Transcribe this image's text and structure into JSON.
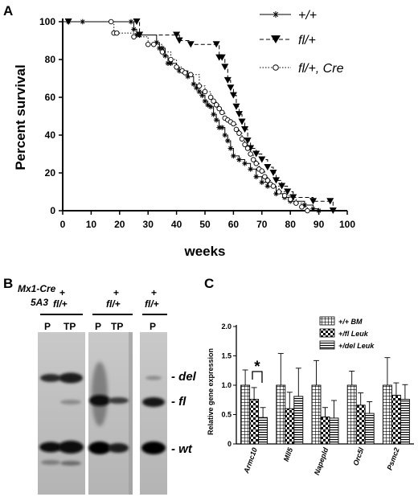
{
  "figure": {
    "panel_a_letter": "A",
    "panel_b_letter": "B",
    "panel_c_letter": "C"
  },
  "colors": {
    "ink": "#000000",
    "gel": "#bdbdbd"
  },
  "chart_data": [
    {
      "type": "line",
      "panel": "A",
      "xlabel": "weeks",
      "ylabel": "Percent survival",
      "xlim": [
        0,
        100
      ],
      "ylim": [
        0,
        100
      ],
      "x_ticks": [
        0,
        10,
        20,
        30,
        40,
        50,
        60,
        70,
        80,
        90,
        100
      ],
      "y_ticks": [
        0,
        20,
        40,
        60,
        80,
        100
      ],
      "legend_position": "top-right",
      "series": [
        {
          "name": "+/+",
          "marker": "star",
          "line_style": "solid",
          "points": [
            [
              0,
              100
            ],
            [
              2,
              100
            ],
            [
              7,
              100
            ],
            [
              24,
              100
            ],
            [
              25,
              96
            ],
            [
              26,
              93
            ],
            [
              27,
              93
            ],
            [
              33,
              89
            ],
            [
              34,
              86
            ],
            [
              35,
              86
            ],
            [
              36,
              82
            ],
            [
              37,
              78
            ],
            [
              38,
              78
            ],
            [
              40,
              76
            ],
            [
              41,
              74
            ],
            [
              42,
              74
            ],
            [
              44,
              71
            ],
            [
              46,
              67
            ],
            [
              47,
              65
            ],
            [
              48,
              63
            ],
            [
              49,
              61
            ],
            [
              50,
              58
            ],
            [
              51,
              56
            ],
            [
              52,
              55
            ],
            [
              53,
              51
            ],
            [
              54,
              48
            ],
            [
              55,
              44
            ],
            [
              56,
              44
            ],
            [
              57,
              40
            ],
            [
              58,
              37
            ],
            [
              59,
              33
            ],
            [
              60,
              29
            ],
            [
              62,
              27
            ],
            [
              64,
              25
            ],
            [
              66,
              22
            ],
            [
              68,
              18
            ],
            [
              70,
              15
            ],
            [
              72,
              13
            ],
            [
              75,
              9
            ],
            [
              78,
              7
            ],
            [
              80,
              5
            ],
            [
              85,
              3
            ],
            [
              88,
              1
            ],
            [
              90,
              0
            ]
          ]
        },
        {
          "name": "fl/+",
          "marker": "triangle",
          "line_style": "dashed",
          "points": [
            [
              0,
              100
            ],
            [
              2,
              100
            ],
            [
              26,
              100
            ],
            [
              27,
              93
            ],
            [
              40,
              93
            ],
            [
              41,
              90
            ],
            [
              45,
              88
            ],
            [
              54,
              88
            ],
            [
              55,
              81
            ],
            [
              56,
              81
            ],
            [
              57,
              76
            ],
            [
              58,
              69
            ],
            [
              59,
              65
            ],
            [
              60,
              61
            ],
            [
              61,
              55
            ],
            [
              62,
              51
            ],
            [
              63,
              47
            ],
            [
              64,
              43
            ],
            [
              65,
              37
            ],
            [
              66,
              33
            ],
            [
              68,
              30
            ],
            [
              70,
              27
            ],
            [
              72,
              23
            ],
            [
              74,
              20
            ],
            [
              75,
              16
            ],
            [
              77,
              13
            ],
            [
              79,
              10
            ],
            [
              81,
              7
            ],
            [
              88,
              5
            ],
            [
              94,
              5
            ],
            [
              95,
              0
            ]
          ]
        },
        {
          "name": "fl/+, Cre",
          "marker": "circle",
          "line_style": "dotted",
          "points": [
            [
              0,
              100
            ],
            [
              17,
              100
            ],
            [
              18,
              94
            ],
            [
              19,
              94
            ],
            [
              25,
              92
            ],
            [
              30,
              88
            ],
            [
              32,
              88
            ],
            [
              35,
              84
            ],
            [
              38,
              80
            ],
            [
              40,
              76
            ],
            [
              42,
              74
            ],
            [
              43,
              73
            ],
            [
              45,
              72
            ],
            [
              48,
              66
            ],
            [
              50,
              63
            ],
            [
              52,
              60
            ],
            [
              53,
              58
            ],
            [
              54,
              56
            ],
            [
              55,
              54
            ],
            [
              56,
              52
            ],
            [
              57,
              49
            ],
            [
              58,
              48
            ],
            [
              59,
              47
            ],
            [
              60,
              46
            ],
            [
              61,
              43
            ],
            [
              62,
              41
            ],
            [
              63,
              38
            ],
            [
              64,
              35
            ],
            [
              65,
              33
            ],
            [
              66,
              30
            ],
            [
              67,
              27
            ],
            [
              68,
              25
            ],
            [
              69,
              22
            ],
            [
              70,
              21
            ],
            [
              71,
              18
            ],
            [
              72,
              16
            ],
            [
              73,
              14
            ],
            [
              74,
              13
            ],
            [
              76,
              10
            ],
            [
              78,
              8
            ],
            [
              80,
              6
            ],
            [
              82,
              4
            ],
            [
              84,
              2
            ],
            [
              86,
              0
            ]
          ]
        }
      ]
    },
    {
      "type": "bar",
      "panel": "C",
      "ylabel": "Relative gene expression",
      "ylim": [
        0,
        2.0
      ],
      "y_ticks": [
        "0",
        "0.5",
        "1.0",
        "1.5",
        "2.0"
      ],
      "categories": [
        "Armc10",
        "Mll5",
        "Napepld",
        "Orc5l",
        "Psmc2"
      ],
      "legend_position": "top-right",
      "annotation": "*",
      "series": [
        {
          "name": "+/+ BM",
          "pattern": "grid",
          "values": [
            1.0,
            1.0,
            1.0,
            1.0,
            1.0
          ],
          "errors": [
            0.26,
            0.54,
            0.42,
            0.24,
            0.47
          ]
        },
        {
          "name": "+/fl Leuk",
          "pattern": "checker",
          "values": [
            0.76,
            0.6,
            0.46,
            0.66,
            0.83
          ],
          "errors": [
            0.2,
            0.28,
            0.16,
            0.21,
            0.21
          ]
        },
        {
          "name": "+/del Leuk",
          "pattern": "hstripe",
          "values": [
            0.45,
            0.81,
            0.44,
            0.52,
            0.76
          ],
          "errors": [
            0.17,
            0.48,
            0.3,
            0.2,
            0.25
          ]
        }
      ]
    }
  ],
  "blot": {
    "header_line1": "Mx1-Cre",
    "header_line2": "5A3",
    "plus": "+",
    "genotype": "fl/+",
    "lane_p": "P",
    "lane_tp": "TP",
    "band_del": "- del",
    "band_fl": "- fl",
    "band_wt": "- wt"
  }
}
